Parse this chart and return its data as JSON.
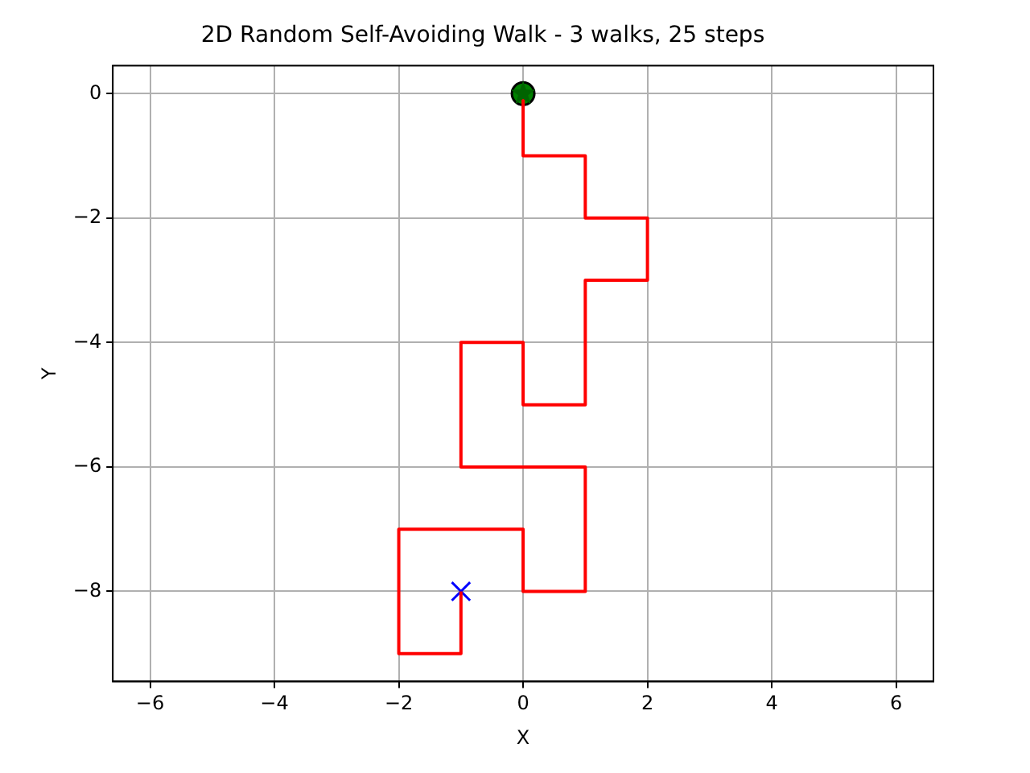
{
  "chart_data": {
    "type": "line",
    "title": "2D Random Self-Avoiding Walk - 3 walks, 25 steps",
    "xlabel": "X",
    "ylabel": "Y",
    "series": [
      {
        "color": "#ff0000",
        "marker": "none",
        "x": [
          0,
          0,
          1,
          1,
          2,
          2,
          1,
          1,
          0,
          0,
          -1,
          -1,
          1,
          1,
          0,
          0,
          -2,
          -2,
          -1,
          -1
        ],
        "values": [
          0,
          -1,
          -1,
          -2,
          -2,
          -3,
          -3,
          -5,
          -5,
          -4,
          -4,
          -6,
          -6,
          -8,
          -8,
          -7,
          -7,
          -9,
          -9,
          -8
        ]
      },
      {
        "type": "scatter",
        "color": "#008000",
        "marker": "circle",
        "x": [
          0
        ],
        "values": [
          0
        ]
      },
      {
        "type": "scatter",
        "color": "#006400",
        "marker": "star",
        "x": [
          0
        ],
        "values": [
          0
        ]
      },
      {
        "type": "scatter",
        "color": "#0000ff",
        "marker": "cross",
        "x": [
          -1
        ],
        "values": [
          -8
        ]
      }
    ],
    "xlim": [
      -6.6,
      6.6
    ],
    "xticks": [
      -6,
      -4,
      -2,
      0,
      2,
      4,
      6
    ],
    "ylim": [
      -9.45,
      0.45
    ],
    "yticks": [
      -8,
      -6,
      -4,
      -2,
      0
    ],
    "grid": true,
    "legend": false
  }
}
